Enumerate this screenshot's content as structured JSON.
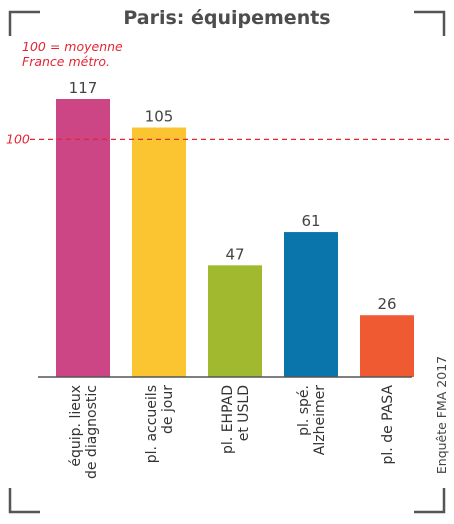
{
  "chart_data": {
    "type": "bar",
    "title": "Paris: équipements",
    "reference": {
      "value": 100,
      "label": "100",
      "note_lines": [
        "100 = moyenne",
        "France métro."
      ]
    },
    "categories": [
      [
        "équip. lieux",
        "de diagnostic"
      ],
      [
        "pl. accueils",
        "de jour"
      ],
      [
        "pl. EHPAD",
        "et USLD"
      ],
      [
        "pl. spé.",
        "Alzheimer"
      ],
      [
        "pl. de PASA"
      ]
    ],
    "values": [
      117,
      105,
      47,
      61,
      26
    ],
    "colors": [
      "#cc4584",
      "#fbc531",
      "#a0b92e",
      "#0a75ab",
      "#f05a32"
    ],
    "reference_color": "#e32636",
    "ylim": [
      0,
      117
    ],
    "source": "Enquête FMA 2017"
  }
}
